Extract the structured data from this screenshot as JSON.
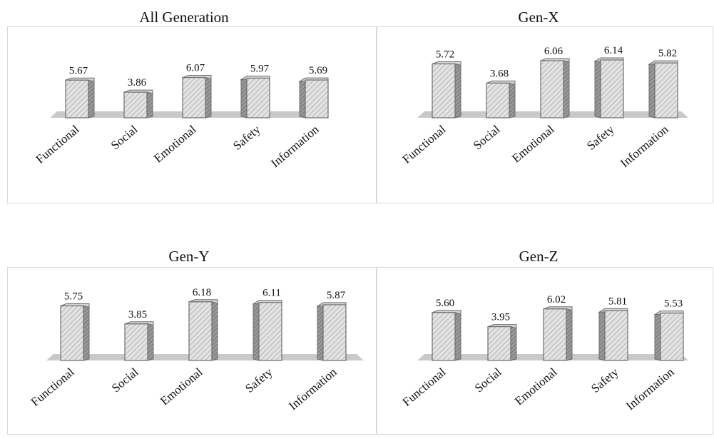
{
  "chart_data": [
    {
      "type": "bar",
      "title": "All Generation",
      "categories": [
        "Functional",
        "Social",
        "Emotional",
        "Safety",
        "Information"
      ],
      "values": [
        5.67,
        3.86,
        6.07,
        5.97,
        5.69
      ],
      "value_labels": [
        "5.67",
        "3.86",
        "6.07",
        "5.97",
        "5.69"
      ]
    },
    {
      "type": "bar",
      "title": "Gen-X",
      "categories": [
        "Functional",
        "Social",
        "Emotional",
        "Safety",
        "Information"
      ],
      "values": [
        5.72,
        3.68,
        6.06,
        6.14,
        5.82
      ],
      "value_labels": [
        "5.72",
        "3.68",
        "6.06",
        "6.14",
        "5.82"
      ]
    },
    {
      "type": "bar",
      "title": "Gen-Y",
      "categories": [
        "Functional",
        "Social",
        "Emotional",
        "Safety",
        "Information"
      ],
      "values": [
        5.75,
        3.85,
        6.18,
        6.11,
        5.87
      ],
      "value_labels": [
        "5.75",
        "3.85",
        "6.18",
        "6.11",
        "5.87"
      ]
    },
    {
      "type": "bar",
      "title": "Gen-Z",
      "categories": [
        "Functional",
        "Social",
        "Emotional",
        "Safety",
        "Information"
      ],
      "values": [
        5.6,
        3.95,
        6.02,
        5.81,
        5.53
      ],
      "value_labels": [
        "5.60",
        "3.95",
        "6.02",
        "5.81",
        "5.53"
      ]
    }
  ],
  "colors": {
    "bar_face": "#e0e0e0",
    "bar_side": "#8f8f8f",
    "bar_top": "#d4d4d4",
    "bar_edge": "#6e6e6e",
    "floor": "#c9c9c9",
    "frame": "#d9d9d9"
  }
}
